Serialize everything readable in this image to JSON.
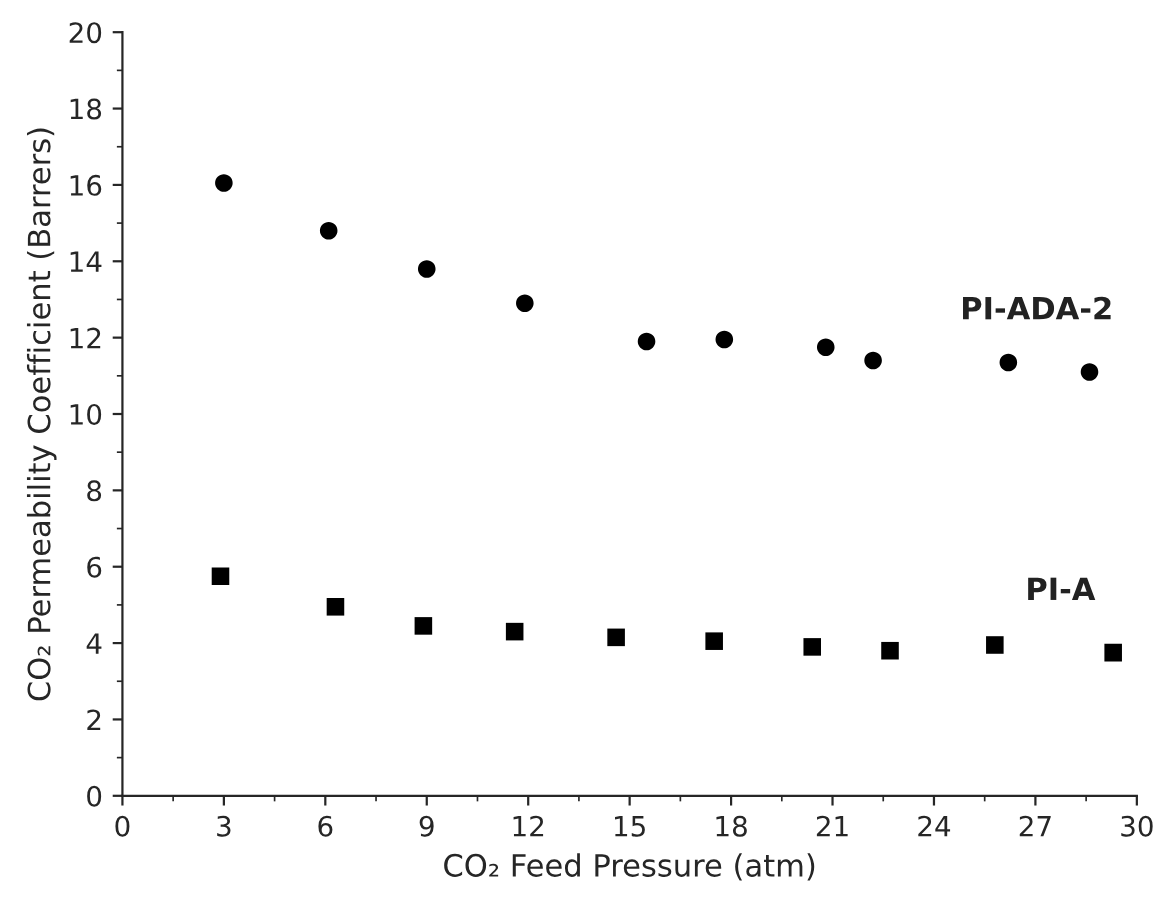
{
  "chart_data": {
    "type": "scatter",
    "xlabel": "CO₂ Feed Pressure (atm)",
    "ylabel": "CO₂ Permeability Coefficient (Barrers)",
    "xlim": [
      0,
      30
    ],
    "xticks": [
      0,
      3,
      6,
      9,
      12,
      15,
      18,
      21,
      24,
      27,
      30
    ],
    "ylim": [
      0,
      20
    ],
    "yticks": [
      0,
      2,
      4,
      6,
      8,
      10,
      12,
      14,
      16,
      18,
      20
    ],
    "grid": false,
    "legend": false,
    "series": [
      {
        "name": "PI-ADA-2",
        "color": "#000000",
        "marker": "circle",
        "x": [
          3.0,
          6.1,
          9.0,
          11.9,
          15.5,
          17.8,
          20.8,
          22.2,
          26.2,
          28.6
        ],
        "values": [
          16.05,
          14.8,
          13.8,
          12.9,
          11.9,
          11.95,
          11.75,
          11.4,
          11.35,
          11.1
        ]
      },
      {
        "name": "PI-A",
        "color": "#000000",
        "marker": "square",
        "x": [
          2.9,
          6.3,
          8.9,
          11.6,
          14.6,
          17.5,
          20.4,
          22.7,
          25.8,
          29.3
        ],
        "values": [
          5.75,
          4.95,
          4.45,
          4.3,
          4.15,
          4.05,
          3.9,
          3.8,
          3.95,
          3.75
        ]
      }
    ]
  }
}
